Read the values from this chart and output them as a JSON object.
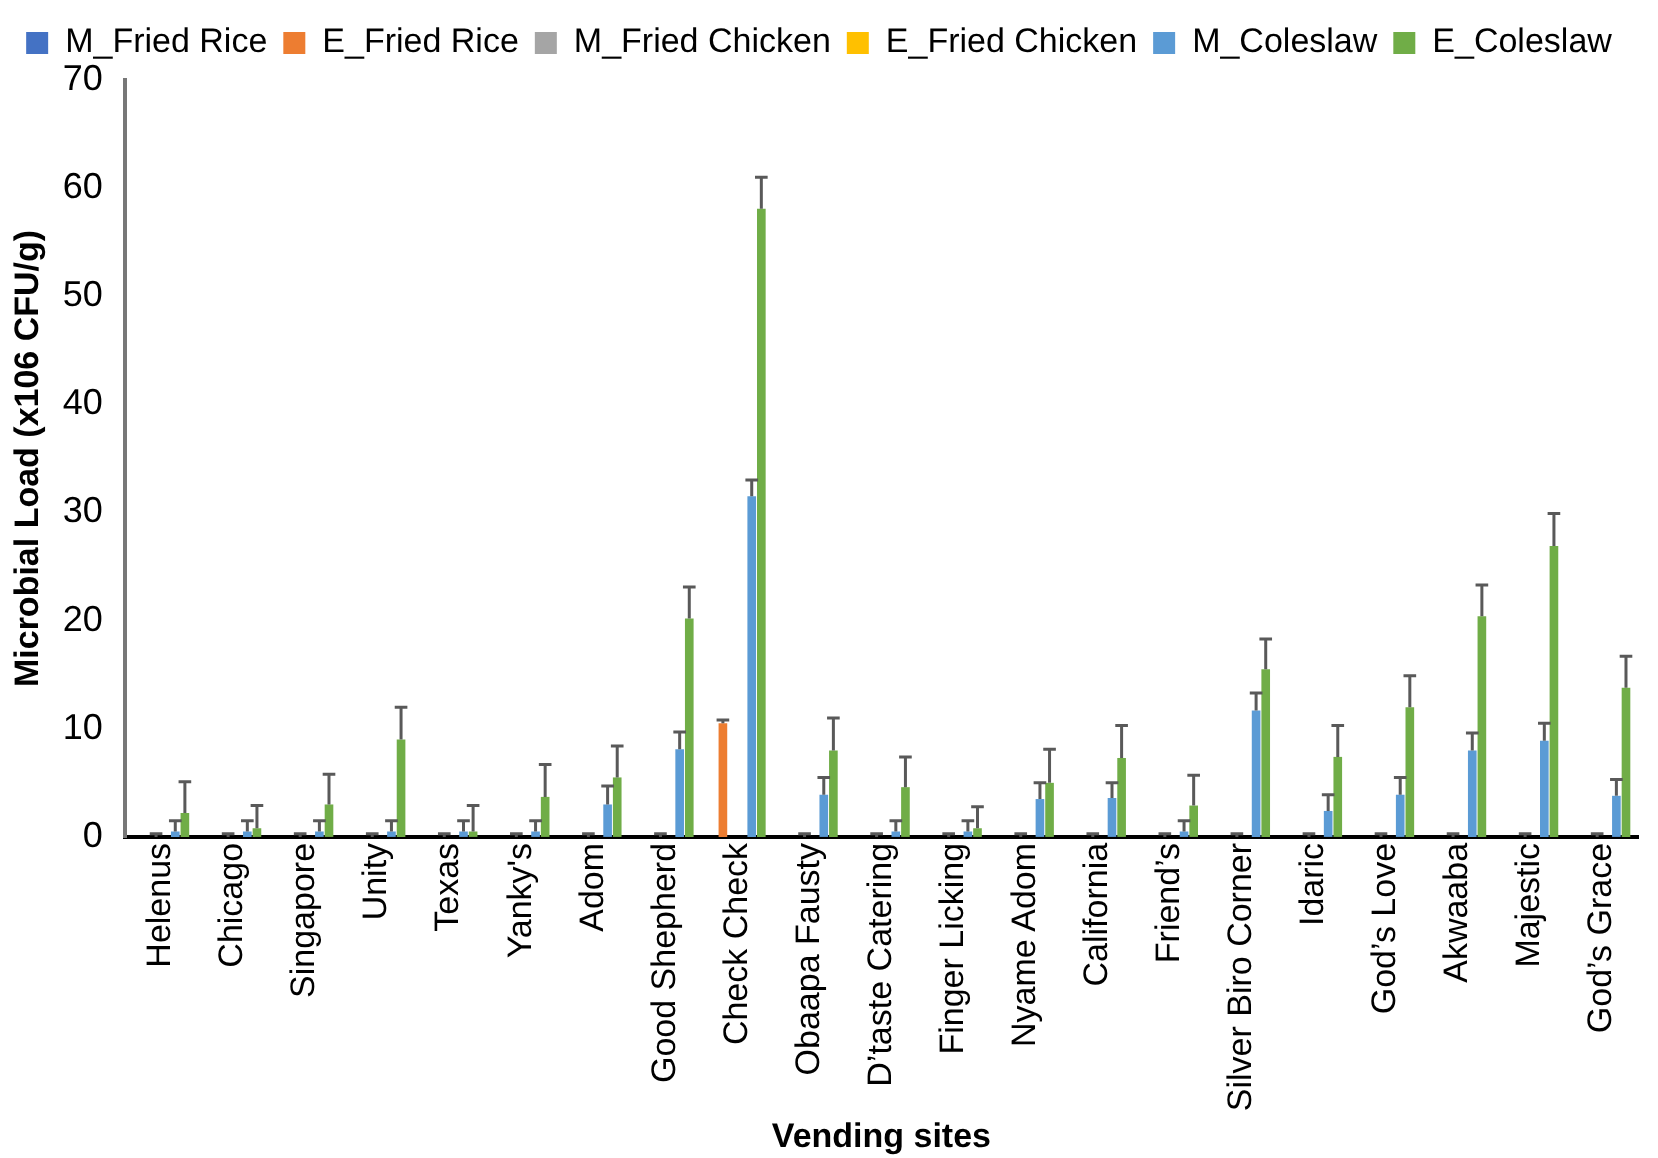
{
  "chart_data": {
    "type": "bar",
    "xlabel": "Vending sites",
    "ylabel": "Microbial Load (x106 CFU/g)",
    "categories": [
      "Helenus",
      "Chicago",
      "Singapore",
      "Unity",
      "Texas",
      "Yanky's",
      "Adom",
      "Good Shepherd",
      "Check Check",
      "Obaapa Fausty",
      "D’taste Catering",
      "Finger Licking",
      "Nyame Adom",
      "California",
      "Friend’s",
      "Silver Biro Corner",
      "Idaric",
      "God’s Love",
      "Akwaaba",
      "Majestic",
      "God’s Grace"
    ],
    "series": [
      {
        "name": "M_Fried Rice",
        "color": "#4472c4",
        "values": [
          0,
          0,
          0,
          0,
          0,
          0,
          0,
          0,
          0,
          0,
          0,
          0,
          0,
          0,
          0,
          0,
          0,
          0,
          0,
          0,
          0
        ]
      },
      {
        "name": "E_Fried Rice",
        "color": "#ed7d31",
        "values": [
          0,
          0,
          0,
          0,
          0,
          0,
          0,
          0,
          10.5,
          0,
          0,
          0,
          0,
          0,
          0,
          0,
          0,
          0,
          0,
          0,
          0
        ],
        "errors": [
          null,
          null,
          null,
          null,
          null,
          null,
          null,
          null,
          [
            10.5,
            10.8
          ],
          null,
          null,
          null,
          null,
          null,
          null,
          null,
          null,
          null,
          null,
          null,
          null
        ]
      },
      {
        "name": "M_Fried Chicken",
        "color": "#a5a5a5",
        "values": [
          0,
          0,
          0,
          0,
          0,
          0,
          0,
          0,
          0,
          0,
          0,
          0,
          0,
          0,
          0,
          0,
          0,
          0,
          0,
          0,
          0
        ],
        "errors": [
          [
            0,
            0.3
          ],
          [
            0,
            0.3
          ],
          [
            0,
            0.3
          ],
          [
            0,
            0.3
          ],
          [
            0,
            0.3
          ],
          [
            0,
            0.3
          ],
          [
            0,
            0.3
          ],
          [
            0,
            0.3
          ],
          null,
          [
            0,
            0.3
          ],
          [
            0,
            0.3
          ],
          [
            0,
            0.3
          ],
          [
            0,
            0.3
          ],
          [
            0,
            0.3
          ],
          [
            0,
            0.3
          ],
          [
            0,
            0.3
          ],
          [
            0,
            0.3
          ],
          [
            0,
            0.3
          ],
          [
            0,
            0.3
          ],
          [
            0,
            0.3
          ],
          [
            0,
            0.3
          ]
        ]
      },
      {
        "name": "E_Fried Chicken",
        "color": "#ffc000",
        "values": [
          0,
          0,
          0,
          0,
          0,
          0,
          0,
          0,
          0,
          0,
          0,
          0,
          0,
          0,
          0,
          0,
          0,
          0,
          0,
          0,
          0
        ]
      },
      {
        "name": "M_Coleslaw",
        "color": "#5b9bd5",
        "values": [
          0.5,
          0.5,
          0.5,
          0.5,
          0.5,
          0.5,
          3.0,
          8.1,
          31.5,
          3.9,
          0.5,
          0.5,
          3.5,
          3.6,
          0.5,
          11.7,
          2.4,
          3.9,
          8.0,
          8.9,
          3.8
        ],
        "errors": [
          [
            0.5,
            1.5
          ],
          [
            0.5,
            1.5
          ],
          [
            0.5,
            1.5
          ],
          [
            0.5,
            1.5
          ],
          [
            0.5,
            1.5
          ],
          [
            0.5,
            1.5
          ],
          [
            3.0,
            4.7
          ],
          [
            8.1,
            9.7
          ],
          [
            31.5,
            33.0
          ],
          [
            3.9,
            5.5
          ],
          [
            0.5,
            1.5
          ],
          [
            0.5,
            1.5
          ],
          [
            3.5,
            5.0
          ],
          [
            3.6,
            5.0
          ],
          [
            0.5,
            1.5
          ],
          [
            11.7,
            13.3
          ],
          [
            2.4,
            3.9
          ],
          [
            3.9,
            5.5
          ],
          [
            8.0,
            9.6
          ],
          [
            8.9,
            10.5
          ],
          [
            3.8,
            5.3
          ]
        ]
      },
      {
        "name": "E_Coleslaw",
        "color": "#70ad47",
        "values": [
          2.2,
          0.8,
          3.0,
          9.0,
          0.5,
          3.7,
          5.5,
          20.2,
          58.1,
          8.0,
          4.6,
          0.8,
          5.0,
          7.3,
          2.9,
          15.5,
          7.4,
          12.0,
          20.4,
          26.9,
          13.8
        ],
        "errors": [
          [
            2.2,
            5.1
          ],
          [
            0.8,
            2.9
          ],
          [
            3.0,
            5.8
          ],
          [
            9.0,
            12.0
          ],
          [
            0.5,
            2.9
          ],
          [
            3.7,
            6.7
          ],
          [
            5.5,
            8.4
          ],
          [
            20.2,
            23.1
          ],
          [
            58.1,
            61.0
          ],
          [
            8.0,
            11.0
          ],
          [
            4.6,
            7.4
          ],
          [
            0.8,
            2.8
          ],
          [
            5.0,
            8.1
          ],
          [
            7.3,
            10.3
          ],
          [
            2.9,
            5.7
          ],
          [
            15.5,
            18.3
          ],
          [
            7.4,
            10.3
          ],
          [
            12.0,
            14.9
          ],
          [
            20.4,
            23.3
          ],
          [
            26.9,
            29.9
          ],
          [
            13.8,
            16.7
          ]
        ]
      }
    ],
    "ylim": [
      0,
      70
    ],
    "yticks": [
      0,
      10,
      20,
      30,
      40,
      50,
      60,
      70
    ],
    "grid": false,
    "legend": "top"
  }
}
